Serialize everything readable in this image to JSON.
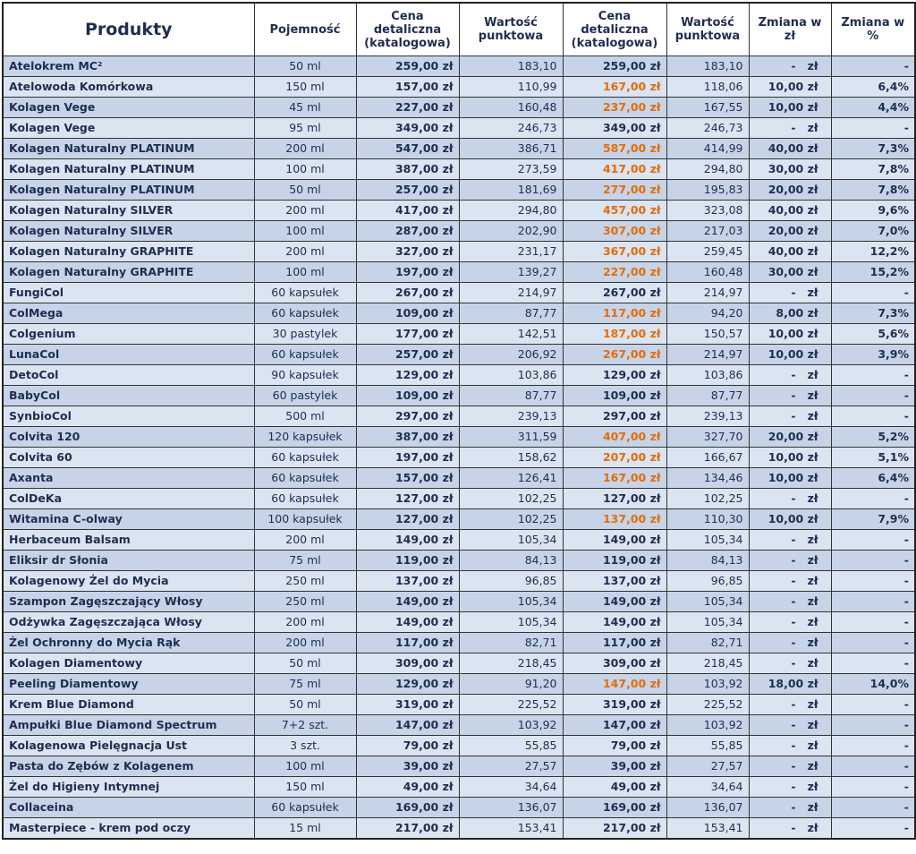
{
  "table": {
    "header": [
      "Produkty",
      "Pojemność",
      "Cena\ndetaliczna\n(katalogowa)",
      "Wartość\npunktowa",
      "Cena\ndetaliczna\n(katalogowa)",
      "Wartość\npunktowa",
      "Zmiana w zł",
      "Zmiana w\n%"
    ],
    "rows": [
      [
        "Atelokrem MC²",
        "50 ml",
        "259,00 zł",
        "183,10",
        "259,00 zł",
        "183,10",
        "-   zł",
        "-"
      ],
      [
        "Atelowoda Komórkowa",
        "150 ml",
        "157,00 zł",
        "110,99",
        "167,00 zł",
        "118,06",
        "10,00 zł",
        "6,4%"
      ],
      [
        "Kolagen Vege",
        "45 ml",
        "227,00 zł",
        "160,48",
        "237,00 zł",
        "167,55",
        "10,00 zł",
        "4,4%"
      ],
      [
        "Kolagen Vege",
        "95 ml",
        "349,00 zł",
        "246,73",
        "349,00 zł",
        "246,73",
        "-   zł",
        "-"
      ],
      [
        "Kolagen Naturalny PLATINUM",
        "200 ml",
        "547,00 zł",
        "386,71",
        "587,00 zł",
        "414,99",
        "40,00 zł",
        "7,3%"
      ],
      [
        "Kolagen Naturalny PLATINUM",
        "100 ml",
        "387,00 zł",
        "273,59",
        "417,00 zł",
        "294,80",
        "30,00 zł",
        "7,8%"
      ],
      [
        "Kolagen Naturalny PLATINUM",
        "50 ml",
        "257,00 zł",
        "181,69",
        "277,00 zł",
        "195,83",
        "20,00 zł",
        "7,8%"
      ],
      [
        "Kolagen Naturalny SILVER",
        "200 ml",
        "417,00 zł",
        "294,80",
        "457,00 zł",
        "323,08",
        "40,00 zł",
        "9,6%"
      ],
      [
        "Kolagen Naturalny SILVER",
        "100 ml",
        "287,00 zł",
        "202,90",
        "307,00 zł",
        "217,03",
        "20,00 zł",
        "7,0%"
      ],
      [
        "Kolagen Naturalny GRAPHITE",
        "200 ml",
        "327,00 zł",
        "231,17",
        "367,00 zł",
        "259,45",
        "40,00 zł",
        "12,2%"
      ],
      [
        "Kolagen Naturalny GRAPHITE",
        "100 ml",
        "197,00 zł",
        "139,27",
        "227,00 zł",
        "160,48",
        "30,00 zł",
        "15,2%"
      ],
      [
        "FungiCol",
        "60 kapsułek",
        "267,00 zł",
        "214,97",
        "267,00 zł",
        "214,97",
        "-   zł",
        "-"
      ],
      [
        "ColMega",
        "60 kapsułek",
        "109,00 zł",
        "87,77",
        "117,00 zł",
        "94,20",
        "8,00 zł",
        "7,3%"
      ],
      [
        "Colgenium",
        "30 pastylek",
        "177,00 zł",
        "142,51",
        "187,00 zł",
        "150,57",
        "10,00 zł",
        "5,6%"
      ],
      [
        "LunaCol",
        "60 kapsułek",
        "257,00 zł",
        "206,92",
        "267,00 zł",
        "214,97",
        "10,00 zł",
        "3,9%"
      ],
      [
        "DetoCol",
        "90 kapsułek",
        "129,00 zł",
        "103,86",
        "129,00 zł",
        "103,86",
        "-   zł",
        "-"
      ],
      [
        "BabyCol",
        "60 pastylek",
        "109,00 zł",
        "87,77",
        "109,00 zł",
        "87,77",
        "-   zł",
        "-"
      ],
      [
        "SynbioCol",
        "500 ml",
        "297,00 zł",
        "239,13",
        "297,00 zł",
        "239,13",
        "-   zł",
        "-"
      ],
      [
        "Colvita 120",
        "120 kapsułek",
        "387,00 zł",
        "311,59",
        "407,00 zł",
        "327,70",
        "20,00 zł",
        "5,2%"
      ],
      [
        "Colvita 60",
        "60 kapsułek",
        "197,00 zł",
        "158,62",
        "207,00 zł",
        "166,67",
        "10,00 zł",
        "5,1%"
      ],
      [
        "Axanta",
        "60 kapsułek",
        "157,00 zł",
        "126,41",
        "167,00 zł",
        "134,46",
        "10,00 zł",
        "6,4%"
      ],
      [
        "ColDeKa",
        "60 kapsułek",
        "127,00 zł",
        "102,25",
        "127,00 zł",
        "102,25",
        "-   zł",
        "-"
      ],
      [
        "Witamina C-olway",
        "100 kapsułek",
        "127,00 zł",
        "102,25",
        "137,00 zł",
        "110,30",
        "10,00 zł",
        "7,9%"
      ],
      [
        "Herbaceum Balsam",
        "200 ml",
        "149,00 zł",
        "105,34",
        "149,00 zł",
        "105,34",
        "-   zł",
        "-"
      ],
      [
        "Eliksir dr Słonia",
        "75 ml",
        "119,00 zł",
        "84,13",
        "119,00 zł",
        "84,13",
        "-   zł",
        "-"
      ],
      [
        "Kolagenowy Żel do Mycia",
        "250 ml",
        "137,00 zł",
        "96,85",
        "137,00 zł",
        "96,85",
        "-   zł",
        "-"
      ],
      [
        "Szampon Zagęszczający Włosy",
        "250 ml",
        "149,00 zł",
        "105,34",
        "149,00 zł",
        "105,34",
        "-   zł",
        "-"
      ],
      [
        "Odżywka Zagęszczająca Włosy",
        "200 ml",
        "149,00 zł",
        "105,34",
        "149,00 zł",
        "105,34",
        "-   zł",
        "-"
      ],
      [
        "Żel Ochronny do Mycia Rąk",
        "200 ml",
        "117,00 zł",
        "82,71",
        "117,00 zł",
        "82,71",
        "-   zł",
        "-"
      ],
      [
        "Kolagen Diamentowy",
        "50 ml",
        "309,00 zł",
        "218,45",
        "309,00 zł",
        "218,45",
        "-   zł",
        "-"
      ],
      [
        "Peeling Diamentowy",
        "75 ml",
        "129,00 zł",
        "91,20",
        "147,00 zł",
        "103,92",
        "18,00 zł",
        "14,0%"
      ],
      [
        "Krem Blue Diamond",
        "50 ml",
        "319,00 zł",
        "225,52",
        "319,00 zł",
        "225,52",
        "-   zł",
        "-"
      ],
      [
        "Ampułki Blue Diamond Spectrum",
        "7+2 szt.",
        "147,00 zł",
        "103,92",
        "147,00 zł",
        "103,92",
        "-   zł",
        "-"
      ],
      [
        "Kolagenowa Pielęgnacja Ust",
        "3 szt.",
        "79,00 zł",
        "55,85",
        "79,00 zł",
        "55,85",
        "-   zł",
        "-"
      ],
      [
        "Pasta do Zębów z Kolagenem",
        "100 ml",
        "39,00 zł",
        "27,57",
        "39,00 zł",
        "27,57",
        "-   zł",
        "-"
      ],
      [
        "Żel do Higieny Intymnej",
        "150 ml",
        "49,00 zł",
        "34,64",
        "49,00 zł",
        "34,64",
        "-   zł",
        "-"
      ],
      [
        "Collaceina",
        "60 kapsułek",
        "169,00 zł",
        "136,07",
        "169,00 zł",
        "136,07",
        "-   zł",
        "-"
      ],
      [
        "Masterpiece - krem pod oczy",
        "15 ml",
        "217,00 zł",
        "153,41",
        "217,00 zł",
        "153,41",
        "-   zł",
        "-"
      ]
    ]
  }
}
